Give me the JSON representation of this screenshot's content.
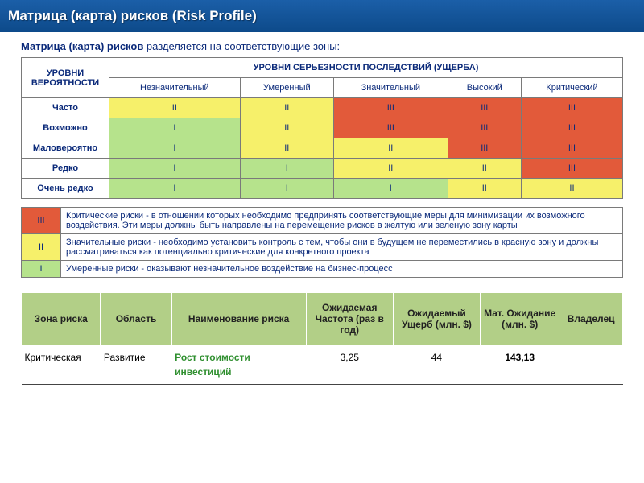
{
  "banner": {
    "title": "Матрица (карта) рисков (Risk Profile)"
  },
  "subtitle": {
    "bold": "Матрица (карта) рисков",
    "rest": " разделяется на соответствующие зоны:"
  },
  "matrix": {
    "side_header": "УРОВНИ ВЕРОЯТНОСТИ",
    "top_header": "УРОВНИ СЕРЬЕЗНОСТИ ПОСЛЕДСТВИЙ (УЩЕРБА)",
    "columns": [
      "Незначительный",
      "Умеренный",
      "Значительный",
      "Высокий",
      "Критический"
    ],
    "rows": [
      {
        "label": "Часто",
        "cells": [
          [
            "II",
            "yellow"
          ],
          [
            "II",
            "yellow"
          ],
          [
            "III",
            "red"
          ],
          [
            "III",
            "red"
          ],
          [
            "III",
            "red"
          ]
        ]
      },
      {
        "label": "Возможно",
        "cells": [
          [
            "I",
            "green"
          ],
          [
            "II",
            "yellow"
          ],
          [
            "III",
            "red"
          ],
          [
            "III",
            "red"
          ],
          [
            "III",
            "red"
          ]
        ]
      },
      {
        "label": "Маловероятно",
        "cells": [
          [
            "I",
            "green"
          ],
          [
            "II",
            "yellow"
          ],
          [
            "II",
            "yellow"
          ],
          [
            "III",
            "red"
          ],
          [
            "III",
            "red"
          ]
        ]
      },
      {
        "label": "Редко",
        "cells": [
          [
            "I",
            "green"
          ],
          [
            "I",
            "green"
          ],
          [
            "II",
            "yellow"
          ],
          [
            "II",
            "yellow"
          ],
          [
            "III",
            "red"
          ]
        ]
      },
      {
        "label": "Очень редко",
        "cells": [
          [
            "I",
            "green"
          ],
          [
            "I",
            "green"
          ],
          [
            "I",
            "green"
          ],
          [
            "II",
            "yellow"
          ],
          [
            "II",
            "yellow"
          ]
        ]
      }
    ]
  },
  "legend": [
    {
      "marker": "III",
      "cls": "red",
      "text": "Критические риски - в отношении которых необходимо предпринять соответствующие меры для минимизации их возможного воздействия. Эти меры должны быть направлены на перемещение рисков в желтую или зеленую зону карты"
    },
    {
      "marker": "II",
      "cls": "yellow",
      "text": "Значительные риски - необходимо установить контроль с тем, чтобы они в будущем не переместились в красную зону и должны рассматриваться как потенциально критические для конкретного проекта"
    },
    {
      "marker": "I",
      "cls": "green",
      "text": "Умеренные риски - оказывают незначительное воздействие на бизнес-процесс"
    }
  ],
  "summary": {
    "headers": [
      "Зона риска",
      "Область",
      "Наименование риска",
      "Ожидаемая Частота (раз в год)",
      "Ожидаемый Ущерб (млн. $)",
      "Мат. Ожидание (млн. $)",
      "Владелец"
    ],
    "row": {
      "zone": "Критическая",
      "area": "Развитие",
      "name": "Рост стоимости инвестиций",
      "freq": "3,25",
      "damage": "44",
      "expect": "143,13",
      "owner": ""
    }
  }
}
